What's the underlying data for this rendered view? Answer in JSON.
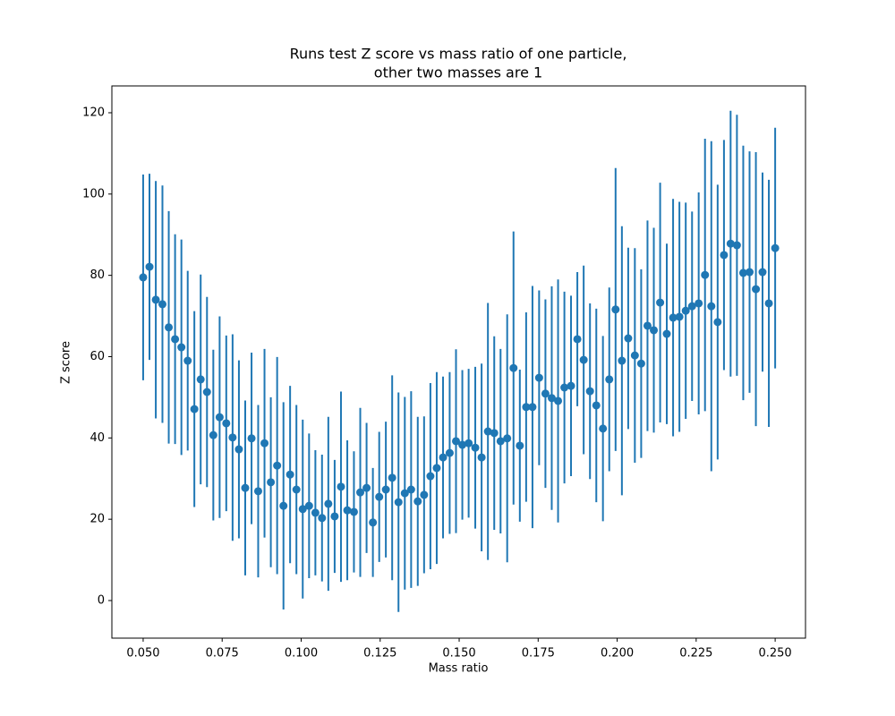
{
  "chart_data": {
    "type": "errorbar",
    "title": [
      "Runs test Z score vs mass ratio of one particle,",
      "other two masses are 1"
    ],
    "x_label": "Mass ratio",
    "y_label": "Z score",
    "color": "#1f77b4",
    "x": [
      0.05,
      0.052,
      0.054,
      0.0561,
      0.0581,
      0.0601,
      0.0621,
      0.0641,
      0.0662,
      0.0682,
      0.0702,
      0.0722,
      0.0742,
      0.0763,
      0.0783,
      0.0803,
      0.0823,
      0.0843,
      0.0864,
      0.0884,
      0.0904,
      0.0924,
      0.0944,
      0.0965,
      0.0985,
      0.1005,
      0.1025,
      0.1045,
      0.1066,
      0.1086,
      0.1106,
      0.1126,
      0.1146,
      0.1167,
      0.1187,
      0.1207,
      0.1227,
      0.1247,
      0.1268,
      0.1288,
      0.1308,
      0.1328,
      0.1348,
      0.1369,
      0.1389,
      0.1409,
      0.1429,
      0.1449,
      0.147,
      0.149,
      0.151,
      0.153,
      0.1551,
      0.1571,
      0.1591,
      0.1611,
      0.1631,
      0.1652,
      0.1672,
      0.1692,
      0.1712,
      0.1732,
      0.1753,
      0.1773,
      0.1793,
      0.1813,
      0.1833,
      0.1854,
      0.1874,
      0.1894,
      0.1914,
      0.1934,
      0.1955,
      0.1975,
      0.1995,
      0.2015,
      0.2035,
      0.2056,
      0.2076,
      0.2096,
      0.2116,
      0.2136,
      0.2157,
      0.2177,
      0.2197,
      0.2217,
      0.2237,
      0.2258,
      0.2278,
      0.2298,
      0.2318,
      0.2338,
      0.2359,
      0.2379,
      0.2399,
      0.2419,
      0.2439,
      0.246,
      0.248,
      0.25
    ],
    "values": [
      79.5,
      82.1,
      74.0,
      72.9,
      67.2,
      64.3,
      62.3,
      59.0,
      47.1,
      54.4,
      51.3,
      40.7,
      45.1,
      43.6,
      40.1,
      37.2,
      27.7,
      39.9,
      26.9,
      38.7,
      29.1,
      33.2,
      23.3,
      31.0,
      27.3,
      22.5,
      23.3,
      21.6,
      20.3,
      23.8,
      20.7,
      28.0,
      22.2,
      21.8,
      26.6,
      27.7,
      19.2,
      25.5,
      27.3,
      30.2,
      24.2,
      26.4,
      27.3,
      24.4,
      26.0,
      30.6,
      32.6,
      35.2,
      36.3,
      39.2,
      38.3,
      38.7,
      37.6,
      35.2,
      41.6,
      41.2,
      39.2,
      39.9,
      57.2,
      38.1,
      47.6,
      47.6,
      54.8,
      50.9,
      49.8,
      49.1,
      52.4,
      52.8,
      64.3,
      59.2,
      51.5,
      48.0,
      42.3,
      54.4,
      71.6,
      59.0,
      64.5,
      60.3,
      58.3,
      67.6,
      66.5,
      73.3,
      65.6,
      69.6,
      69.8,
      71.3,
      72.4,
      73.1,
      80.1,
      72.4,
      68.5,
      85.0,
      87.8,
      87.4,
      80.6,
      80.8,
      76.6,
      80.8,
      73.1,
      86.7
    ],
    "errors": [
      25.3,
      22.9,
      29.2,
      29.2,
      28.6,
      25.8,
      26.5,
      22.1,
      24.1,
      25.8,
      23.4,
      21.0,
      24.8,
      21.6,
      25.4,
      21.9,
      21.5,
      21.1,
      21.2,
      23.2,
      20.9,
      26.7,
      25.5,
      21.8,
      20.8,
      22.0,
      17.8,
      15.4,
      15.6,
      21.4,
      13.9,
      23.4,
      17.2,
      14.9,
      20.8,
      16.0,
      13.4,
      16.0,
      16.7,
      25.2,
      27.0,
      23.7,
      24.2,
      20.8,
      19.3,
      22.9,
      23.6,
      19.9,
      19.9,
      22.6,
      18.4,
      18.3,
      19.9,
      23.1,
      31.6,
      23.8,
      22.7,
      30.5,
      33.6,
      18.7,
      23.3,
      29.8,
      21.5,
      23.2,
      27.5,
      29.9,
      23.6,
      22.2,
      16.5,
      23.2,
      21.6,
      23.8,
      22.8,
      22.6,
      34.8,
      33.1,
      22.3,
      26.4,
      23.2,
      25.9,
      25.2,
      29.5,
      22.2,
      29.2,
      28.3,
      26.6,
      23.3,
      27.3,
      33.5,
      40.6,
      33.8,
      28.3,
      32.7,
      32.1,
      31.3,
      29.7,
      33.7,
      24.5,
      30.4,
      29.6
    ],
    "xlim": [
      0.0401,
      0.2596
    ],
    "ylim": [
      -9.25,
      126.6
    ],
    "xticks": [
      {
        "value": 0.05,
        "label": "0.050"
      },
      {
        "value": 0.075,
        "label": "0.075"
      },
      {
        "value": 0.1,
        "label": "0.100"
      },
      {
        "value": 0.125,
        "label": "0.125"
      },
      {
        "value": 0.15,
        "label": "0.150"
      },
      {
        "value": 0.175,
        "label": "0.175"
      },
      {
        "value": 0.2,
        "label": "0.200"
      },
      {
        "value": 0.225,
        "label": "0.225"
      },
      {
        "value": 0.25,
        "label": "0.250"
      }
    ],
    "yticks": [
      0,
      20,
      40,
      60,
      80,
      100,
      120
    ]
  }
}
